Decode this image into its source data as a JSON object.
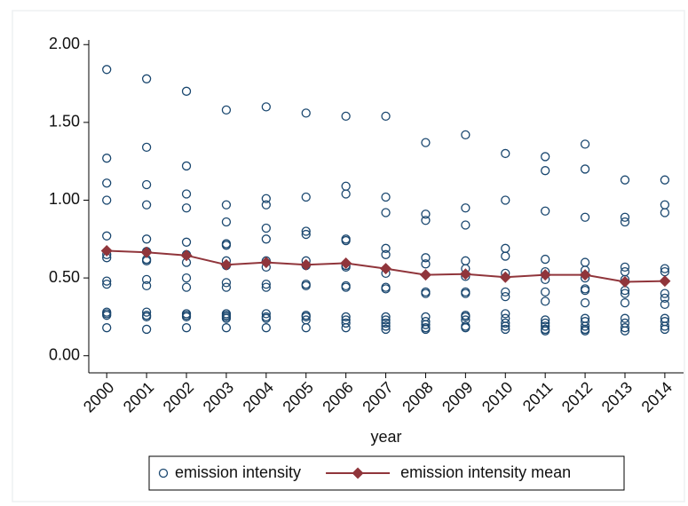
{
  "chart_data": {
    "type": "scatter",
    "x_label": "year",
    "xlim": [
      1999.55,
      2014.47
    ],
    "xticks": [
      2000,
      2001,
      2002,
      2003,
      2004,
      2005,
      2006,
      2007,
      2008,
      2009,
      2010,
      2011,
      2012,
      2013,
      2014
    ],
    "ylim": [
      -0.11,
      2.03
    ],
    "yticks": [
      {
        "value": 0,
        "label": "0.00"
      },
      {
        "value": 0.5,
        "label": "0.50"
      },
      {
        "value": 1,
        "label": "1.00"
      },
      {
        "value": 1.5,
        "label": "1.50"
      },
      {
        "value": 2,
        "label": "2.00"
      }
    ],
    "grid": false,
    "legend": "bottom",
    "series": [
      {
        "name": "emission intensity",
        "type": "scatter",
        "color": "#1a476f",
        "x": [
          2000,
          2000,
          2000,
          2000,
          2000,
          2000,
          2000,
          2000,
          2000,
          2000,
          2000,
          2000,
          2000,
          2001,
          2001,
          2001,
          2001,
          2001,
          2001,
          2001,
          2001,
          2001,
          2001,
          2001,
          2001,
          2001,
          2001,
          2002,
          2002,
          2002,
          2002,
          2002,
          2002,
          2002,
          2002,
          2002,
          2002,
          2002,
          2002,
          2002,
          2003,
          2003,
          2003,
          2003,
          2003,
          2003,
          2003,
          2003,
          2003,
          2003,
          2003,
          2003,
          2003,
          2003,
          2004,
          2004,
          2004,
          2004,
          2004,
          2004,
          2004,
          2004,
          2004,
          2004,
          2004,
          2004,
          2004,
          2005,
          2005,
          2005,
          2005,
          2005,
          2005,
          2005,
          2005,
          2005,
          2005,
          2005,
          2005,
          2006,
          2006,
          2006,
          2006,
          2006,
          2006,
          2006,
          2006,
          2006,
          2006,
          2006,
          2006,
          2006,
          2007,
          2007,
          2007,
          2007,
          2007,
          2007,
          2007,
          2007,
          2007,
          2007,
          2007,
          2007,
          2007,
          2008,
          2008,
          2008,
          2008,
          2008,
          2008,
          2008,
          2008,
          2008,
          2008,
          2008,
          2008,
          2009,
          2009,
          2009,
          2009,
          2009,
          2009,
          2009,
          2009,
          2009,
          2009,
          2009,
          2009,
          2009,
          2010,
          2010,
          2010,
          2010,
          2010,
          2010,
          2010,
          2010,
          2010,
          2010,
          2010,
          2010,
          2011,
          2011,
          2011,
          2011,
          2011,
          2011,
          2011,
          2011,
          2011,
          2011,
          2011,
          2011,
          2011,
          2012,
          2012,
          2012,
          2012,
          2012,
          2012,
          2012,
          2012,
          2012,
          2012,
          2012,
          2012,
          2012,
          2012,
          2013,
          2013,
          2013,
          2013,
          2013,
          2013,
          2013,
          2013,
          2013,
          2013,
          2013,
          2013,
          2013,
          2014,
          2014,
          2014,
          2014,
          2014,
          2014,
          2014,
          2014,
          2014,
          2014,
          2014,
          2014
        ],
        "values": [
          1.84,
          1.27,
          1.11,
          1.0,
          0.77,
          0.65,
          0.63,
          0.48,
          0.46,
          0.28,
          0.27,
          0.26,
          0.18,
          1.78,
          1.34,
          1.1,
          0.97,
          0.75,
          0.67,
          0.62,
          0.61,
          0.49,
          0.45,
          0.28,
          0.26,
          0.25,
          0.17,
          1.7,
          1.22,
          1.04,
          0.95,
          0.73,
          0.65,
          0.6,
          0.5,
          0.44,
          0.27,
          0.26,
          0.25,
          0.18,
          1.58,
          0.97,
          0.86,
          0.72,
          0.71,
          0.61,
          0.58,
          0.47,
          0.44,
          0.27,
          0.26,
          0.25,
          0.24,
          0.18,
          1.6,
          1.01,
          0.97,
          0.82,
          0.75,
          0.61,
          0.57,
          0.46,
          0.44,
          0.27,
          0.25,
          0.24,
          0.18,
          1.56,
          1.02,
          0.8,
          0.78,
          0.61,
          0.58,
          0.46,
          0.45,
          0.26,
          0.25,
          0.23,
          0.18,
          1.54,
          1.09,
          1.04,
          0.75,
          0.74,
          0.58,
          0.57,
          0.45,
          0.44,
          0.25,
          0.23,
          0.21,
          0.18,
          1.54,
          1.02,
          0.92,
          0.69,
          0.65,
          0.53,
          0.44,
          0.43,
          0.25,
          0.23,
          0.21,
          0.19,
          0.17,
          1.37,
          0.91,
          0.87,
          0.63,
          0.59,
          0.41,
          0.4,
          0.25,
          0.22,
          0.2,
          0.18,
          0.17,
          1.42,
          0.95,
          0.84,
          0.61,
          0.56,
          0.51,
          0.41,
          0.4,
          0.26,
          0.25,
          0.23,
          0.19,
          0.18,
          1.3,
          1.0,
          0.69,
          0.64,
          0.53,
          0.41,
          0.38,
          0.27,
          0.24,
          0.21,
          0.19,
          0.17,
          1.28,
          1.19,
          0.93,
          0.62,
          0.54,
          0.49,
          0.41,
          0.35,
          0.23,
          0.21,
          0.19,
          0.17,
          0.16,
          1.36,
          1.2,
          0.89,
          0.6,
          0.55,
          0.5,
          0.43,
          0.42,
          0.34,
          0.24,
          0.22,
          0.19,
          0.17,
          0.16,
          1.13,
          0.89,
          0.86,
          0.57,
          0.54,
          0.49,
          0.42,
          0.4,
          0.34,
          0.24,
          0.21,
          0.18,
          0.16,
          1.13,
          0.97,
          0.92,
          0.56,
          0.54,
          0.4,
          0.37,
          0.33,
          0.24,
          0.22,
          0.19,
          0.17
        ]
      },
      {
        "name": "emission intensity mean",
        "type": "line",
        "color": "#90353b",
        "x": [
          2000,
          2001,
          2002,
          2003,
          2004,
          2005,
          2006,
          2007,
          2008,
          2009,
          2010,
          2011,
          2012,
          2013,
          2014
        ],
        "values": [
          0.675,
          0.665,
          0.645,
          0.585,
          0.6,
          0.585,
          0.595,
          0.56,
          0.52,
          0.525,
          0.505,
          0.52,
          0.52,
          0.475,
          0.48
        ]
      }
    ]
  }
}
